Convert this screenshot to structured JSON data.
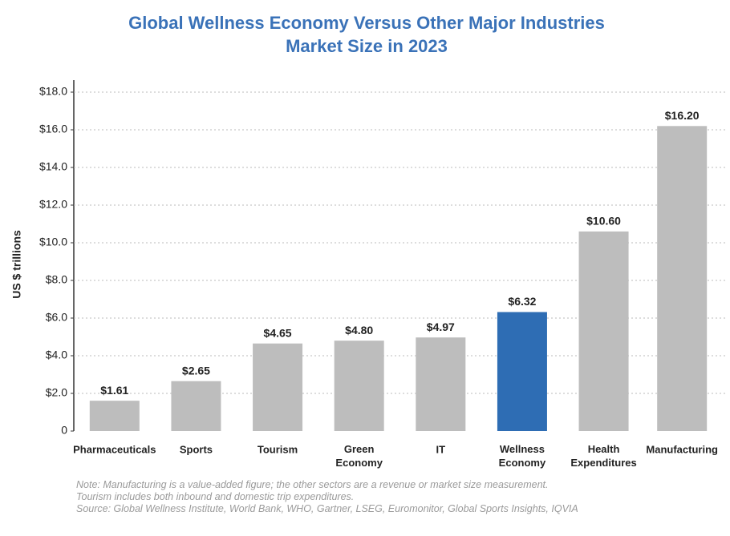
{
  "chart_data": {
    "type": "bar",
    "title": [
      "Global Wellness Economy Versus Other Major Industries",
      "Market Size in 2023"
    ],
    "y_label": "US $ trillions",
    "categories": [
      "Pharmaceuticals",
      "Sports",
      "Tourism",
      "Green Economy",
      "IT",
      "Wellness Economy",
      "Health Expenditures",
      "Manufacturing"
    ],
    "values": [
      1.61,
      2.65,
      4.65,
      4.8,
      4.97,
      6.32,
      10.6,
      16.2
    ],
    "value_labels": [
      "$1.61",
      "$2.65",
      "$4.65",
      "$4.80",
      "$4.97",
      "$6.32",
      "$10.60",
      "$16.20"
    ],
    "colors": [
      "#bdbdbd",
      "#bdbdbd",
      "#bdbdbd",
      "#bdbdbd",
      "#bdbdbd",
      "#2e6db4",
      "#bdbdbd",
      "#bdbdbd"
    ],
    "ylim": [
      0,
      18
    ],
    "yticks": [
      0,
      {
        "value": 2,
        "label": "$2.0"
      },
      {
        "value": 4,
        "label": "$4.0"
      },
      {
        "value": 6,
        "label": "$6.0"
      },
      {
        "value": 8,
        "label": "$8.0"
      },
      {
        "value": 10,
        "label": "$10.0"
      },
      {
        "value": 12,
        "label": "$12.0"
      },
      {
        "value": 14,
        "label": "$14.0"
      },
      {
        "value": 16,
        "label": "$16.0"
      },
      {
        "value": 18,
        "label": "$18.0"
      }
    ],
    "grid": true,
    "notes": [
      "Note: Manufacturing is a value-added figure; the other sectors are a revenue or market size measurement.",
      "Tourism includes both inbound and domestic trip expenditures.",
      "Source: Global Wellness Institute, World Bank, WHO, Gartner, LSEG, Euromonitor, Global Sports Insights, IQVIA"
    ]
  }
}
